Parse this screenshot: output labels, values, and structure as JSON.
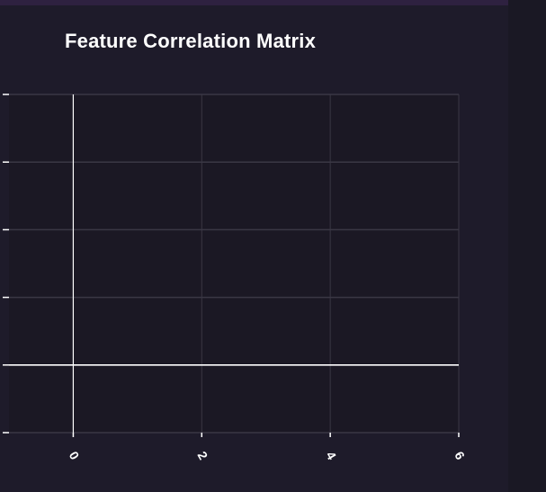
{
  "colors": {
    "background": "#1e1b2a",
    "plot_background": "#1b1824",
    "grid": "#3a3744",
    "axis": "#ffffff",
    "text": "#ffffff",
    "top_strip": "#2e2140",
    "right_panel": "#1a1824"
  },
  "chart_data": {
    "type": "heatmap",
    "title": "Feature Correlation Matrix",
    "xlabel": "",
    "ylabel": "",
    "xlim": [
      -1,
      6
    ],
    "ylim": [
      -1,
      4
    ],
    "x_ticks": [
      0,
      2,
      4,
      6
    ],
    "x_tick_labels": [
      "0",
      "2",
      "4",
      "6"
    ],
    "y_ticks": [
      -1,
      0,
      1,
      2,
      3,
      4
    ],
    "y_tick_labels": [
      "",
      "",
      "",
      "",
      "",
      ""
    ],
    "grid": true,
    "zero_lines": true,
    "cells": []
  }
}
